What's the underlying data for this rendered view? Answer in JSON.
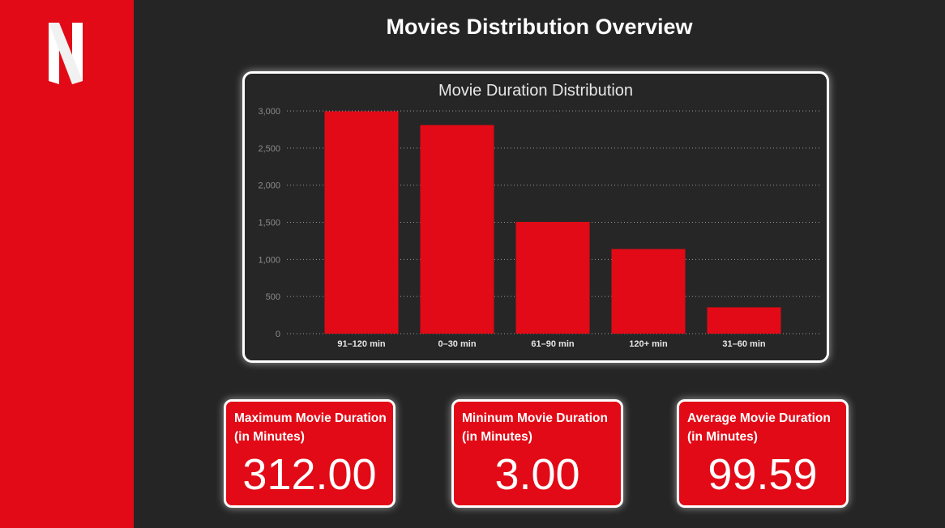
{
  "header": {
    "title": "Movies Distribution Overview"
  },
  "logo": {
    "icon": "netflix-n-logo",
    "color": "#ffffff"
  },
  "colors": {
    "brand": "#e20a16",
    "background": "#252525",
    "card_border": "#ffffff"
  },
  "chart_data": {
    "type": "bar",
    "title": "Movie Duration Distribution",
    "categories": [
      "91–120 min",
      "0–30 min",
      "61–90 min",
      "120+ min",
      "31–60 min"
    ],
    "values": [
      2995,
      2810,
      1505,
      1140,
      355
    ],
    "xlabel": "",
    "ylabel": "",
    "ylim": [
      0,
      3000
    ],
    "yticks": [
      0,
      500,
      1000,
      1500,
      2000,
      2500,
      3000
    ],
    "ytick_labels": [
      "0",
      "500",
      "1,000",
      "1,500",
      "2,000",
      "2,500",
      "3,000"
    ],
    "grid": true,
    "bar_color": "#e20a16"
  },
  "kpis": [
    {
      "label": "Maximum Movie Duration (in Minutes)",
      "value": "312.00"
    },
    {
      "label": "Mininum Movie Duration (in Minutes)",
      "value": "3.00"
    },
    {
      "label": "Average Movie Duration (in Minutes)",
      "value": "99.59"
    }
  ]
}
